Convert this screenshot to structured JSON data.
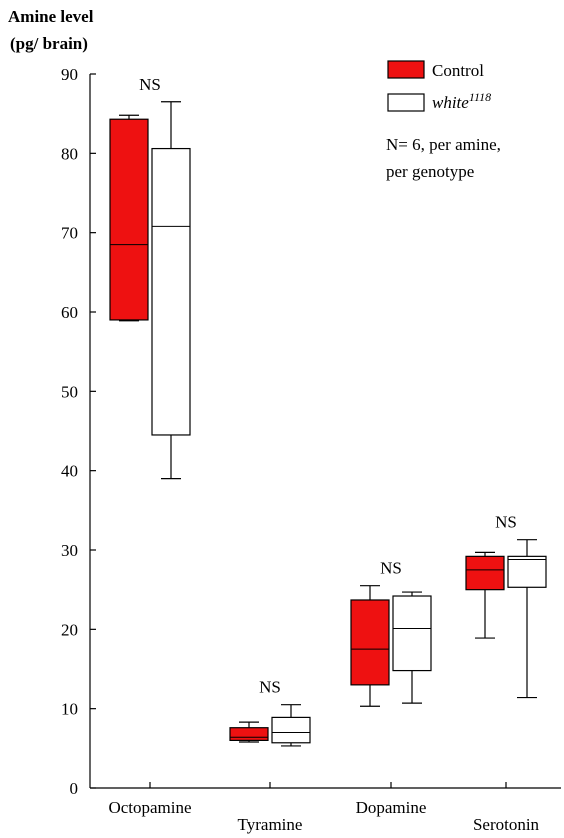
{
  "chart_data": {
    "type": "box",
    "ylabel_line1": "Amine level",
    "ylabel_line2": "(pg/ brain)",
    "ylim": [
      0,
      90
    ],
    "yticks": [
      0,
      10,
      20,
      30,
      40,
      50,
      60,
      70,
      80,
      90
    ],
    "categories": [
      "Octopamine",
      "Tyramine",
      "Dopamine",
      "Serotonin"
    ],
    "series": [
      {
        "name": "Control",
        "color": "#ee1111",
        "boxes": [
          {
            "whisker_low": 58.9,
            "q1": 59.0,
            "median": 68.5,
            "q3": 84.3,
            "whisker_high": 84.8
          },
          {
            "whisker_low": 5.8,
            "q1": 6.0,
            "median": 6.4,
            "q3": 7.6,
            "whisker_high": 8.3
          },
          {
            "whisker_low": 10.3,
            "q1": 13.0,
            "median": 17.5,
            "q3": 23.7,
            "whisker_high": 25.5
          },
          {
            "whisker_low": 18.9,
            "q1": 25.0,
            "median": 27.5,
            "q3": 29.2,
            "whisker_high": 29.7
          }
        ]
      },
      {
        "name": "white",
        "name_superscript": "1118",
        "color": "#ffffff",
        "boxes": [
          {
            "whisker_low": 39.0,
            "q1": 44.5,
            "median": 70.8,
            "q3": 80.6,
            "whisker_high": 86.5
          },
          {
            "whisker_low": 5.3,
            "q1": 5.7,
            "median": 7.0,
            "q3": 8.9,
            "whisker_high": 10.5
          },
          {
            "whisker_low": 10.7,
            "q1": 14.8,
            "median": 20.1,
            "q3": 24.2,
            "whisker_high": 24.7
          },
          {
            "whisker_low": 11.4,
            "q1": 25.3,
            "median": 28.8,
            "q3": 29.2,
            "whisker_high": 31.3
          }
        ]
      }
    ],
    "significance": [
      "NS",
      "NS",
      "NS",
      "NS"
    ],
    "note_line1": "N= 6, per amine,",
    "note_line2": "per genotype",
    "legend_position": "top-right",
    "grid": false
  }
}
